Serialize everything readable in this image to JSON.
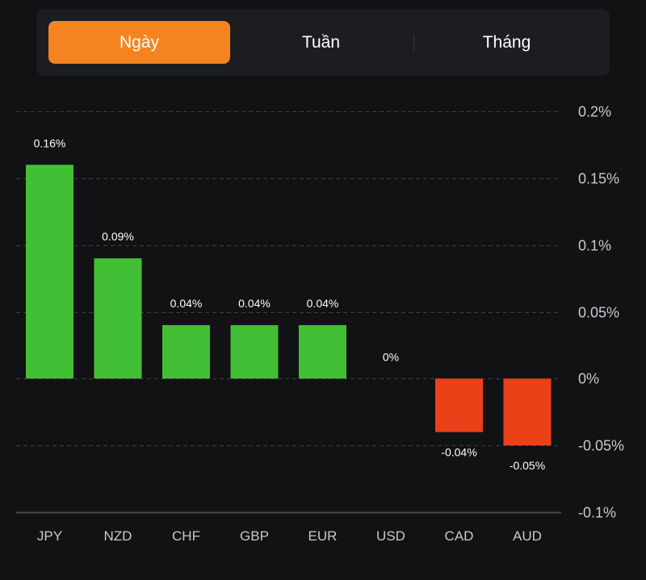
{
  "period_selector": {
    "tabs": [
      {
        "label": "Ngày",
        "active": true
      },
      {
        "label": "Tuần",
        "active": false
      },
      {
        "label": "Tháng",
        "active": false
      }
    ],
    "accent_color": "#f58420"
  },
  "chart_data": {
    "type": "bar",
    "title": "",
    "xlabel": "",
    "ylabel": "",
    "categories": [
      "JPY",
      "NZD",
      "CHF",
      "GBP",
      "EUR",
      "USD",
      "CAD",
      "AUD"
    ],
    "values": [
      0.16,
      0.09,
      0.04,
      0.04,
      0.04,
      0,
      -0.04,
      -0.05
    ],
    "data_labels": [
      "0.16%",
      "0.09%",
      "0.04%",
      "0.04%",
      "0.04%",
      "0%",
      "-0.04%",
      "-0.05%"
    ],
    "ylim": [
      -0.1,
      0.2
    ],
    "yticks": [
      0.2,
      0.15,
      0.1,
      0.05,
      0,
      -0.05,
      -0.1
    ],
    "ytick_labels": [
      "0.2%",
      "0.15%",
      "0.1%",
      "0.05%",
      "0%",
      "-0.05%",
      "-0.1%"
    ],
    "y_axis_position": "right",
    "grid": true,
    "grid_style": "dashed",
    "legend": "none",
    "colors": {
      "positive": "#43bf35",
      "negative": "#ea4119"
    }
  }
}
